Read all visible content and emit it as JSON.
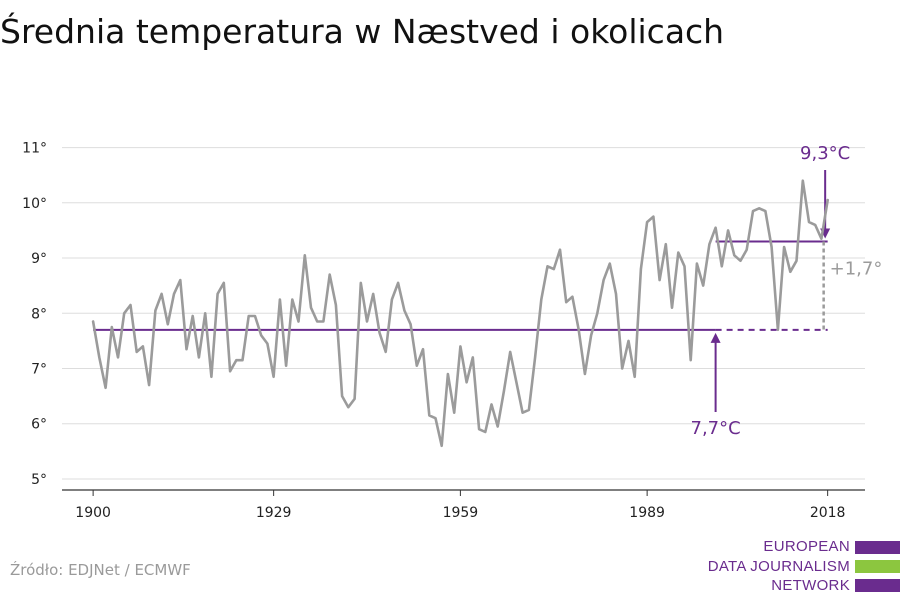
{
  "title": "Średnia temperatura w Næstved i okolicach",
  "source": "Źródło: EDJNet / ECMWF",
  "logo": {
    "lines": [
      "EUROPEAN",
      "DATA JOURNALISM",
      "NETWORK"
    ],
    "colors": [
      "#6a2c8e",
      "#8cc63f",
      "#6a2c8e"
    ]
  },
  "colors": {
    "series": "#9b9b9b",
    "accent": "#6a2c8e",
    "delta": "#9b9b9b",
    "grid": "#dddddd"
  },
  "chart_data": {
    "type": "line",
    "title": "Średnia temperatura w Næstved i okolicach",
    "xlabel": "",
    "ylabel": "",
    "xlim": [
      1895,
      2024
    ],
    "ylim": [
      4.8,
      11.3
    ],
    "x_ticks": [
      1900,
      1929,
      1959,
      1989,
      2018
    ],
    "x_tick_labels": [
      "1900",
      "1929",
      "1959",
      "1989",
      "2018"
    ],
    "y_ticks": [
      5,
      6,
      7,
      8,
      9,
      10,
      11
    ],
    "y_tick_labels": [
      "5°",
      "6°",
      "7°",
      "8°",
      "9°",
      "10°",
      "11°"
    ],
    "grid": true,
    "series": [
      {
        "x_start": 1900,
        "values": [
          7.85,
          7.2,
          6.65,
          7.75,
          7.2,
          8.0,
          8.15,
          7.3,
          7.4,
          6.7,
          8.05,
          8.35,
          7.8,
          8.35,
          8.6,
          7.35,
          7.95,
          7.2,
          8.0,
          6.85,
          8.35,
          8.55,
          6.95,
          7.15,
          7.15,
          7.95,
          7.95,
          7.6,
          7.45,
          6.85,
          8.25,
          7.05,
          8.25,
          7.85,
          9.05,
          8.1,
          7.85,
          7.85,
          8.7,
          8.15,
          6.5,
          6.3,
          6.45,
          8.55,
          7.85,
          8.35,
          7.65,
          7.3,
          8.25,
          8.55,
          8.05,
          7.8,
          7.05,
          7.35,
          6.15,
          6.1,
          5.6,
          6.9,
          6.2,
          7.4,
          6.75,
          7.2,
          5.9,
          5.85,
          6.35,
          5.95,
          6.6,
          7.3,
          6.75,
          6.2,
          6.25,
          7.2,
          8.25,
          8.85,
          8.8,
          9.15,
          8.2,
          8.3,
          7.7,
          6.9,
          7.6,
          8.0,
          8.6,
          8.9,
          8.35,
          7.0,
          7.5,
          6.85,
          8.8,
          9.65,
          9.75,
          8.6,
          9.25,
          8.1,
          9.1,
          8.85,
          7.15,
          8.9,
          8.5,
          9.25,
          9.55,
          8.85,
          9.5,
          9.05,
          8.95,
          9.15,
          9.85,
          9.9,
          9.85,
          9.2,
          7.7,
          9.2,
          8.75,
          8.95,
          10.4,
          9.65,
          9.6,
          9.35,
          10.05
        ]
      }
    ],
    "annotations": {
      "baseline": {
        "value": 7.7,
        "label": "7,7°C",
        "x_from": 1900,
        "x_solid_to": 2000,
        "x_to": 2018,
        "arrow_at": 2000
      },
      "recent": {
        "value": 9.3,
        "label": "9,3°C",
        "x_from": 2000,
        "x_to": 2018,
        "arrow_at": 2017.6
      },
      "delta": {
        "label": "+1,7°",
        "at": 2018
      }
    }
  }
}
